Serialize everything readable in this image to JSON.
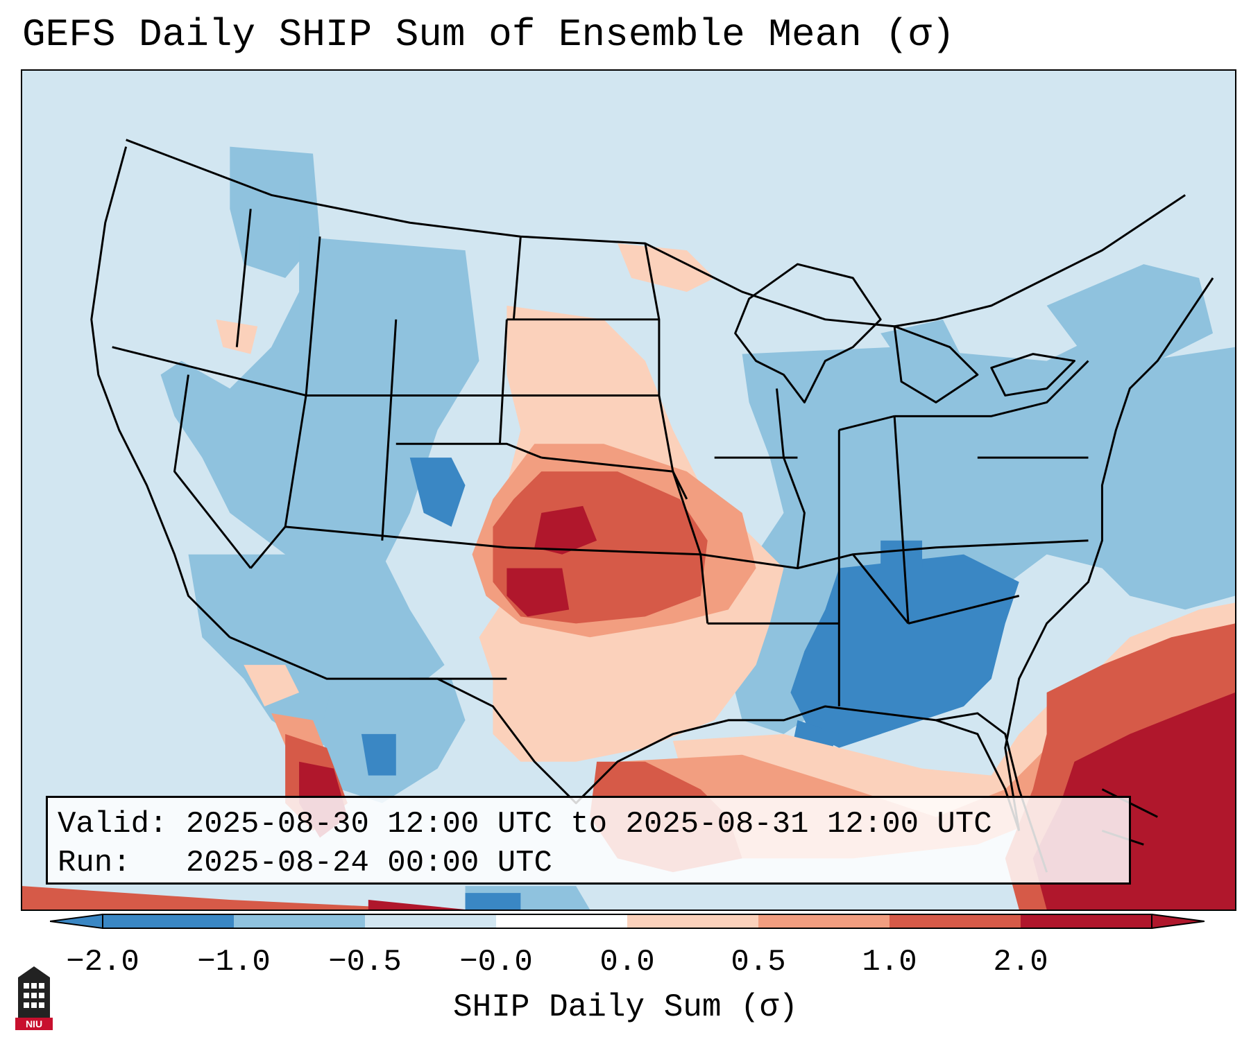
{
  "title": "GEFS Daily SHIP Sum of Ensemble Mean (σ)",
  "info": {
    "valid_label": "Valid:",
    "valid_value": "2025-08-30 12:00 UTC to 2025-08-31 12:00 UTC",
    "run_label": "Run:",
    "run_value": "2025-08-24 00:00 UTC"
  },
  "colorbar": {
    "label": "SHIP Daily Sum (σ)",
    "ticks": [
      "−2.0",
      "−1.0",
      "−0.5",
      "−0.0",
      "0.0",
      "0.5",
      "1.0",
      "2.0"
    ],
    "colors": [
      "#3a87c4",
      "#8fc2de",
      "#d2e6f1",
      "#ffffff",
      "#fbd1bb",
      "#f29e80",
      "#d65a48",
      "#b0172c"
    ],
    "extend": "both"
  },
  "logo": {
    "text": "NIU"
  },
  "palette": {
    "neg_strong": "#3a87c4",
    "neg_mid": "#8fc2de",
    "neg_weak": "#d2e6f1",
    "pos_weak": "#fbd1bb",
    "pos_mid": "#f29e80",
    "pos_strong": "#d65a48",
    "pos_max": "#b0172c"
  }
}
